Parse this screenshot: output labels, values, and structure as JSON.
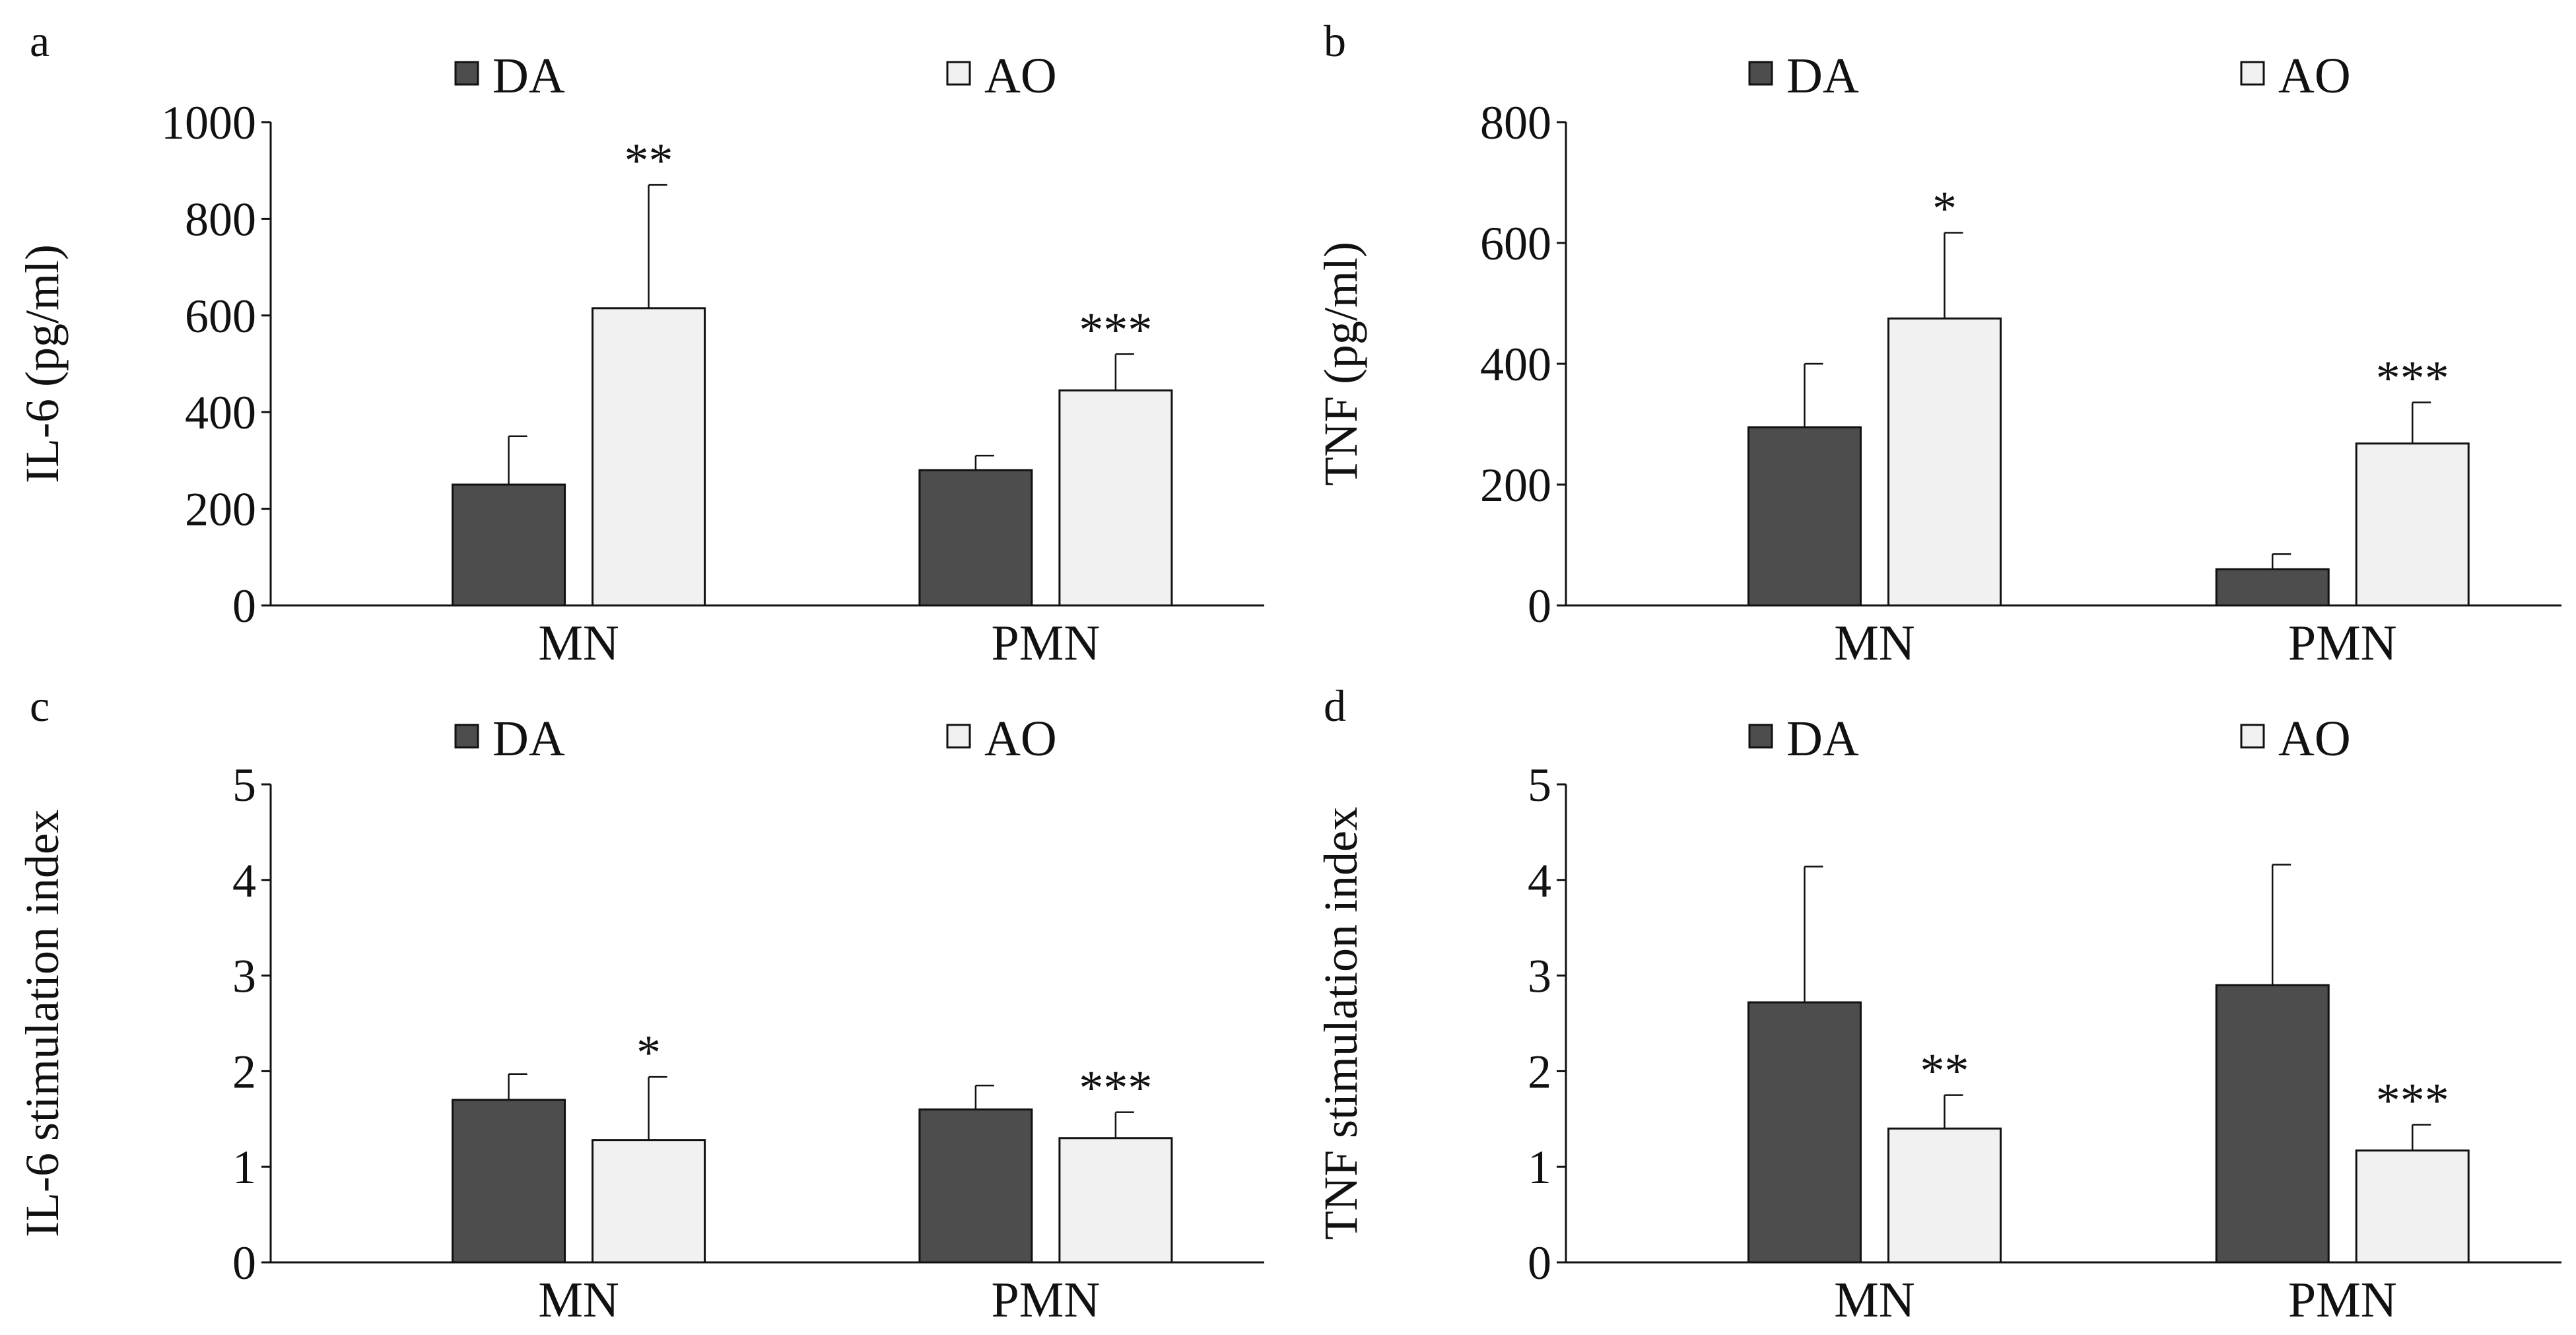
{
  "colors": {
    "DA": "#4d4d4d",
    "AO": "#f1f1f1",
    "stroke": "#111111"
  },
  "chart_data": [
    {
      "type": "bar",
      "panel": "a",
      "ylabel": "IL-6 (pg/ml)",
      "categories": [
        "MN",
        "PMN"
      ],
      "ylim": [
        0,
        1000
      ],
      "yticks": [
        0,
        200,
        400,
        600,
        800,
        1000
      ],
      "legend": "top",
      "series": [
        {
          "name": "DA",
          "values": [
            250,
            280
          ],
          "errors": [
            100,
            30
          ],
          "stars": [
            "",
            ""
          ]
        },
        {
          "name": "AO",
          "values": [
            615,
            445
          ],
          "errors": [
            255,
            75
          ],
          "stars": [
            "**",
            "***"
          ]
        }
      ]
    },
    {
      "type": "bar",
      "panel": "b",
      "ylabel": "TNF (pg/ml)",
      "categories": [
        "MN",
        "PMN"
      ],
      "ylim": [
        0,
        800
      ],
      "yticks": [
        0,
        200,
        400,
        600,
        800
      ],
      "legend": "top",
      "series": [
        {
          "name": "DA",
          "values": [
            295,
            60
          ],
          "errors": [
            105,
            25
          ],
          "stars": [
            "",
            ""
          ]
        },
        {
          "name": "AO",
          "values": [
            475,
            268
          ],
          "errors": [
            142,
            68
          ],
          "stars": [
            "*",
            "***"
          ]
        }
      ]
    },
    {
      "type": "bar",
      "panel": "c",
      "ylabel": "IL-6 stimulation index",
      "categories": [
        "MN",
        "PMN"
      ],
      "ylim": [
        0,
        5
      ],
      "yticks": [
        0,
        1,
        2,
        3,
        4,
        5
      ],
      "legend": "top",
      "series": [
        {
          "name": "DA",
          "values": [
            1.7,
            1.6
          ],
          "errors": [
            0.27,
            0.25
          ],
          "stars": [
            "",
            ""
          ]
        },
        {
          "name": "AO",
          "values": [
            1.28,
            1.3
          ],
          "errors": [
            0.66,
            0.27
          ],
          "stars": [
            "*",
            "***"
          ]
        }
      ]
    },
    {
      "type": "bar",
      "panel": "d",
      "ylabel": "TNF stimulation index",
      "categories": [
        "MN",
        "PMN"
      ],
      "ylim": [
        0,
        5
      ],
      "yticks": [
        0,
        1,
        2,
        3,
        4,
        5
      ],
      "legend": "top",
      "series": [
        {
          "name": "DA",
          "values": [
            2.72,
            2.9
          ],
          "errors": [
            1.42,
            1.26
          ],
          "stars": [
            "",
            ""
          ]
        },
        {
          "name": "AO",
          "values": [
            1.4,
            1.17
          ],
          "errors": [
            0.35,
            0.27
          ],
          "stars": [
            "**",
            "***"
          ]
        }
      ]
    }
  ]
}
